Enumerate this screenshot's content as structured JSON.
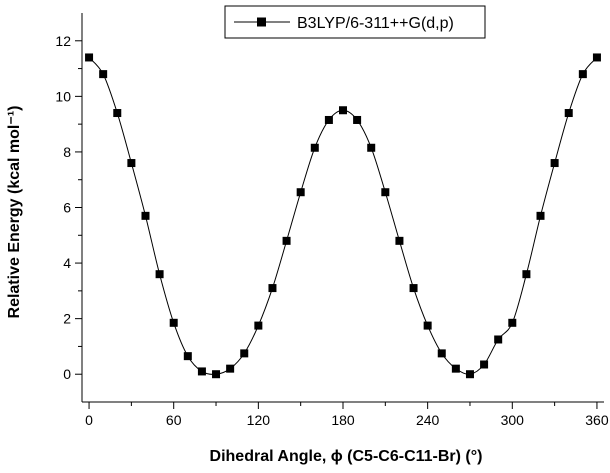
{
  "chart_data": {
    "type": "line",
    "title": "",
    "xlabel": "Dihedral Angle, ϕ (C5-C6-C11-Br) (°)",
    "ylabel": "Relative Energy (kcal mol⁻¹)",
    "xlim": [
      -5,
      365
    ],
    "ylim": [
      -1,
      13
    ],
    "x_ticks": [
      0,
      60,
      120,
      180,
      240,
      300,
      360
    ],
    "x_tick_labels": [
      "0",
      "60",
      "120",
      "180",
      "240",
      "300",
      "360"
    ],
    "y_ticks": [
      0,
      2,
      4,
      6,
      8,
      10,
      12
    ],
    "y_tick_labels": [
      "0",
      "2",
      "4",
      "6",
      "8",
      "10",
      "12"
    ],
    "grid": false,
    "legend": {
      "position": "top-center",
      "entries": [
        "B3LYP/6-311++G(d,p)"
      ]
    },
    "series": [
      {
        "name": "B3LYP/6-311++G(d,p)",
        "color": "#000000",
        "marker": "square",
        "x": [
          0,
          10,
          20,
          30,
          40,
          50,
          60,
          70,
          80,
          90,
          100,
          110,
          120,
          130,
          140,
          150,
          160,
          170,
          180,
          190,
          200,
          210,
          220,
          230,
          240,
          250,
          260,
          270,
          280,
          290,
          300,
          310,
          320,
          330,
          340,
          350,
          360
        ],
        "y": [
          11.4,
          10.8,
          9.4,
          7.6,
          5.7,
          3.6,
          1.85,
          0.65,
          0.1,
          0.0,
          0.2,
          0.75,
          1.75,
          3.1,
          4.8,
          6.55,
          8.15,
          9.15,
          9.5,
          9.15,
          8.15,
          6.55,
          4.8,
          3.1,
          1.75,
          0.75,
          0.2,
          0.0,
          0.35,
          1.25,
          1.85,
          3.6,
          5.7,
          7.6,
          9.4,
          10.8,
          11.4
        ]
      }
    ]
  }
}
